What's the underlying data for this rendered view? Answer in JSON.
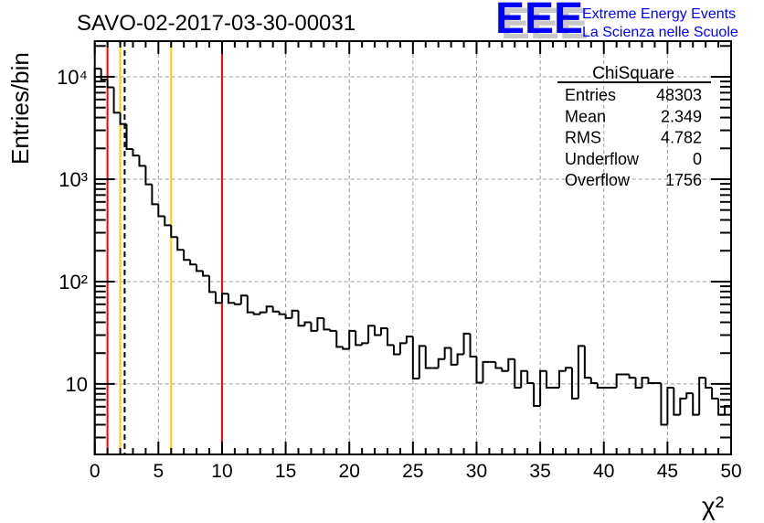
{
  "chart_data": {
    "type": "histogram",
    "title": "SAVO-02-2017-03-30-00031",
    "xlabel": "χ²",
    "ylabel": "Entries/bin",
    "xlim": [
      0,
      50
    ],
    "ylim": [
      2.05,
      22300
    ],
    "yscale": "log",
    "grid": true,
    "bin_width": 0.5,
    "x_ticks": [
      "0",
      "5",
      "10",
      "15",
      "20",
      "25",
      "30",
      "35",
      "40",
      "45",
      "50"
    ],
    "y_ticks": [
      {
        "value": 10000,
        "label": "10⁴"
      },
      {
        "value": 1000,
        "label": "10³"
      },
      {
        "value": 100,
        "label": "10²"
      },
      {
        "value": 10,
        "label": "10"
      }
    ],
    "values": [
      12000,
      9400,
      7900,
      4460,
      3460,
      1970,
      1700,
      1350,
      890,
      570,
      435,
      355,
      272,
      204,
      163,
      147,
      127,
      114,
      79,
      62,
      76,
      62,
      60,
      73,
      50,
      48,
      50,
      57,
      51,
      48,
      44,
      52,
      37,
      40,
      33,
      44,
      34,
      33,
      23,
      22,
      33,
      24,
      25,
      37,
      30,
      35,
      24,
      19.5,
      25,
      29,
      11.3,
      23.5,
      14.3,
      14.3,
      17.5,
      22.5,
      15.4,
      19.5,
      31,
      18.5,
      10.3,
      16.4,
      16.4,
      14.3,
      13.4,
      17.5,
      9.2,
      13.4,
      10.2,
      6.1,
      13.4,
      9.2,
      9.2,
      13.4,
      14.4,
      7.2,
      23.5,
      11.5,
      10.2,
      9.2,
      9.2,
      9.2,
      12.4,
      12.4,
      11.5,
      9.2,
      11.5,
      10.2,
      10.2,
      4.0,
      9.2,
      5.0,
      7.2,
      8.1,
      5.0,
      11.5,
      9.2,
      7.2,
      5.0,
      6.1
    ],
    "markers": [
      {
        "name": "red-line-low",
        "x": 1,
        "color": "#ff0000",
        "style": "solid"
      },
      {
        "name": "yellow-line-low",
        "x": 2,
        "color": "#ffcc00",
        "style": "solid"
      },
      {
        "name": "mean-line",
        "x": 2.349,
        "color": "#000000",
        "style": "dashed"
      },
      {
        "name": "yellow-line-high",
        "x": 6,
        "color": "#ffcc00",
        "style": "solid"
      },
      {
        "name": "red-line-high",
        "x": 10,
        "color": "#ff0000",
        "style": "solid"
      }
    ],
    "stats": {
      "title": "ChiSquare",
      "rows": [
        {
          "label": "Entries",
          "value": "48303"
        },
        {
          "label": "Mean",
          "value": "2.349"
        },
        {
          "label": "RMS",
          "value": "4.782"
        },
        {
          "label": "Underflow",
          "value": "0"
        },
        {
          "label": "Overflow",
          "value": "1756"
        }
      ]
    }
  },
  "logo": {
    "letters": "EEE",
    "line1": "Extreme Energy Events",
    "line2": "La Scienza nelle Scuole",
    "color": "#0000ff"
  }
}
